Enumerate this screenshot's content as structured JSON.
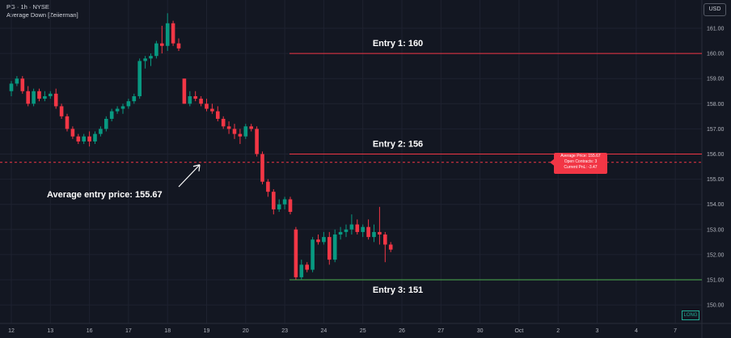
{
  "header": {
    "symbol_line": "PG · 1h · NYSE",
    "indicator": "Average Down [Zeiierman]"
  },
  "currency_button": "USD",
  "position_badge": "LONG",
  "pnl_box": {
    "avg_price": "Average Price: 155.67",
    "open_contracts": "Open Contracts: 3",
    "current_pnl": "Current PnL: -3.47"
  },
  "colors": {
    "background": "#131722",
    "up": "#26a69a",
    "up_bright": "#089981",
    "down": "#f23645",
    "entry_line_red": "#f23645",
    "entry_line_green": "#4caf50"
  },
  "chart_data": {
    "type": "candlestick",
    "y_axis": {
      "ylim": [
        149.6,
        161.7
      ],
      "ticks": [
        150,
        151,
        152,
        153,
        154,
        155,
        156,
        157,
        158,
        159,
        160,
        161
      ],
      "tick_labels": [
        "150.00",
        "151.00",
        "152.00",
        "153.00",
        "154.00",
        "155.00",
        "156.00",
        "157.00",
        "158.00",
        "159.00",
        "160.00",
        "161.00"
      ],
      "position": "right"
    },
    "x_axis": {
      "tick_labels": [
        "12",
        "13",
        "16",
        "17",
        "18",
        "19",
        "20",
        "23",
        "24",
        "25",
        "26",
        "27",
        "30",
        "Oct",
        "2",
        "3",
        "4",
        "7"
      ],
      "tick_index": [
        0,
        7,
        14,
        21,
        28,
        35,
        42,
        49,
        56,
        63,
        70,
        77,
        84,
        91,
        98,
        105,
        112,
        119
      ]
    },
    "candles": [
      {
        "o": 158.5,
        "h": 158.9,
        "l": 158.3,
        "c": 158.8
      },
      {
        "o": 158.8,
        "h": 159.1,
        "l": 158.7,
        "c": 159.0
      },
      {
        "o": 159.0,
        "h": 159.1,
        "l": 158.4,
        "c": 158.5
      },
      {
        "o": 158.5,
        "h": 158.7,
        "l": 157.9,
        "c": 158.0
      },
      {
        "o": 158.0,
        "h": 158.6,
        "l": 157.9,
        "c": 158.5
      },
      {
        "o": 158.5,
        "h": 158.6,
        "l": 158.1,
        "c": 158.2
      },
      {
        "o": 158.2,
        "h": 158.5,
        "l": 158.1,
        "c": 158.3
      },
      {
        "o": 158.3,
        "h": 158.5,
        "l": 158.2,
        "c": 158.4
      },
      {
        "o": 158.4,
        "h": 158.6,
        "l": 157.8,
        "c": 157.9
      },
      {
        "o": 157.9,
        "h": 158.0,
        "l": 157.4,
        "c": 157.5
      },
      {
        "o": 157.5,
        "h": 157.6,
        "l": 156.9,
        "c": 157.0
      },
      {
        "o": 157.0,
        "h": 157.1,
        "l": 156.6,
        "c": 156.7
      },
      {
        "o": 156.7,
        "h": 156.8,
        "l": 156.4,
        "c": 156.5
      },
      {
        "o": 156.5,
        "h": 156.8,
        "l": 156.4,
        "c": 156.7
      },
      {
        "o": 156.7,
        "h": 156.9,
        "l": 156.3,
        "c": 156.5
      },
      {
        "o": 156.5,
        "h": 156.9,
        "l": 156.4,
        "c": 156.8
      },
      {
        "o": 156.8,
        "h": 157.1,
        "l": 156.7,
        "c": 157.0
      },
      {
        "o": 157.0,
        "h": 157.5,
        "l": 156.9,
        "c": 157.4
      },
      {
        "o": 157.4,
        "h": 157.8,
        "l": 157.3,
        "c": 157.7
      },
      {
        "o": 157.7,
        "h": 157.9,
        "l": 157.6,
        "c": 157.8
      },
      {
        "o": 157.8,
        "h": 158.0,
        "l": 157.6,
        "c": 157.9
      },
      {
        "o": 157.9,
        "h": 158.2,
        "l": 157.8,
        "c": 158.1
      },
      {
        "o": 158.1,
        "h": 158.4,
        "l": 158.0,
        "c": 158.3
      },
      {
        "o": 158.3,
        "h": 159.8,
        "l": 158.2,
        "c": 159.7
      },
      {
        "o": 159.7,
        "h": 159.9,
        "l": 159.4,
        "c": 159.8
      },
      {
        "o": 159.8,
        "h": 160.0,
        "l": 159.5,
        "c": 159.9
      },
      {
        "o": 159.9,
        "h": 160.5,
        "l": 159.8,
        "c": 160.4
      },
      {
        "o": 160.4,
        "h": 161.1,
        "l": 160.0,
        "c": 160.3
      },
      {
        "o": 160.3,
        "h": 161.6,
        "l": 160.1,
        "c": 161.2
      },
      {
        "o": 161.2,
        "h": 161.3,
        "l": 160.3,
        "c": 160.4
      },
      {
        "o": 160.4,
        "h": 160.6,
        "l": 160.1,
        "c": 160.2
      },
      {
        "o": 159.0,
        "h": 159.0,
        "l": 158.0,
        "c": 158.0
      },
      {
        "o": 158.0,
        "h": 158.5,
        "l": 157.9,
        "c": 158.3
      },
      {
        "o": 158.3,
        "h": 158.5,
        "l": 158.1,
        "c": 158.2
      },
      {
        "o": 158.2,
        "h": 158.3,
        "l": 157.9,
        "c": 158.0
      },
      {
        "o": 158.0,
        "h": 158.2,
        "l": 157.7,
        "c": 157.8
      },
      {
        "o": 157.8,
        "h": 158.0,
        "l": 157.6,
        "c": 157.7
      },
      {
        "o": 157.7,
        "h": 157.9,
        "l": 157.3,
        "c": 157.4
      },
      {
        "o": 157.4,
        "h": 157.5,
        "l": 157.0,
        "c": 157.1
      },
      {
        "o": 157.1,
        "h": 157.3,
        "l": 156.8,
        "c": 157.0
      },
      {
        "o": 157.0,
        "h": 157.2,
        "l": 156.6,
        "c": 156.8
      },
      {
        "o": 156.8,
        "h": 157.0,
        "l": 156.4,
        "c": 156.7
      },
      {
        "o": 156.7,
        "h": 157.2,
        "l": 156.6,
        "c": 157.1
      },
      {
        "o": 157.1,
        "h": 157.2,
        "l": 156.9,
        "c": 157.0
      },
      {
        "o": 157.0,
        "h": 157.1,
        "l": 155.9,
        "c": 156.0
      },
      {
        "o": 156.0,
        "h": 156.1,
        "l": 154.8,
        "c": 154.9
      },
      {
        "o": 154.9,
        "h": 155.0,
        "l": 154.3,
        "c": 154.5
      },
      {
        "o": 154.5,
        "h": 154.6,
        "l": 153.6,
        "c": 153.8
      },
      {
        "o": 153.8,
        "h": 154.2,
        "l": 153.7,
        "c": 154.0
      },
      {
        "o": 154.0,
        "h": 154.3,
        "l": 153.8,
        "c": 154.2
      },
      {
        "o": 154.2,
        "h": 154.3,
        "l": 153.6,
        "c": 153.7
      },
      {
        "o": 153.0,
        "h": 153.1,
        "l": 151.0,
        "c": 151.1
      },
      {
        "o": 151.1,
        "h": 151.8,
        "l": 151.0,
        "c": 151.6
      },
      {
        "o": 151.6,
        "h": 151.7,
        "l": 151.3,
        "c": 151.4
      },
      {
        "o": 151.4,
        "h": 152.7,
        "l": 151.3,
        "c": 152.6
      },
      {
        "o": 152.6,
        "h": 152.8,
        "l": 152.4,
        "c": 152.5
      },
      {
        "o": 152.5,
        "h": 152.9,
        "l": 152.4,
        "c": 152.7
      },
      {
        "o": 152.7,
        "h": 152.9,
        "l": 151.6,
        "c": 151.8
      },
      {
        "o": 151.8,
        "h": 153.0,
        "l": 151.7,
        "c": 152.8
      },
      {
        "o": 152.8,
        "h": 153.1,
        "l": 152.6,
        "c": 152.9
      },
      {
        "o": 152.9,
        "h": 153.2,
        "l": 152.7,
        "c": 153.0
      },
      {
        "o": 153.0,
        "h": 153.6,
        "l": 152.8,
        "c": 153.2
      },
      {
        "o": 153.2,
        "h": 153.4,
        "l": 152.8,
        "c": 152.9
      },
      {
        "o": 152.9,
        "h": 153.2,
        "l": 152.7,
        "c": 153.1
      },
      {
        "o": 153.1,
        "h": 153.4,
        "l": 152.6,
        "c": 152.7
      },
      {
        "o": 152.7,
        "h": 153.2,
        "l": 152.5,
        "c": 152.9
      },
      {
        "o": 152.9,
        "h": 153.9,
        "l": 152.4,
        "c": 152.8
      },
      {
        "o": 152.8,
        "h": 152.9,
        "l": 151.7,
        "c": 152.4
      },
      {
        "o": 152.4,
        "h": 152.5,
        "l": 152.1,
        "c": 152.2
      }
    ],
    "entries": [
      {
        "label": "Entry 1: 160",
        "price": 160,
        "color": "#f23645"
      },
      {
        "label": "Entry 2: 156",
        "price": 156,
        "color": "#f23645"
      },
      {
        "label": "Entry 3: 151",
        "price": 151,
        "color": "#4caf50"
      }
    ],
    "average_line": {
      "price": 155.67,
      "label": "Average entry price: 155.67"
    },
    "grid": true,
    "legend": "none"
  }
}
